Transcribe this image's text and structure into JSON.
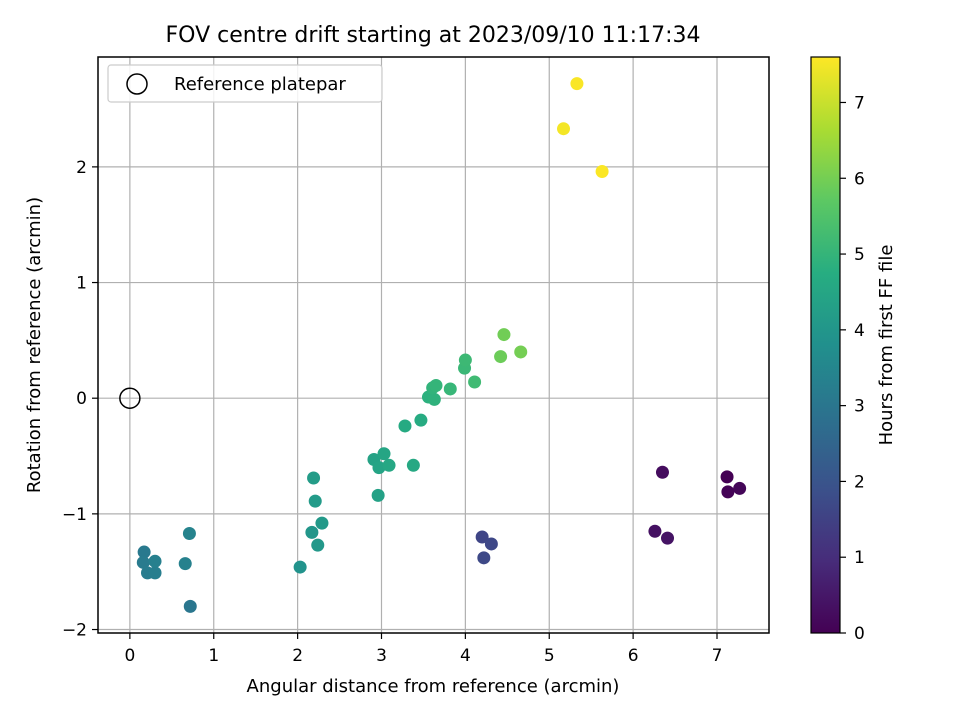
{
  "chart_data": {
    "type": "scatter",
    "title": "FOV centre drift starting at 2023/09/10 11:17:34",
    "xlabel": "Angular distance from reference (arcmin)",
    "ylabel": "Rotation from reference (arcmin)",
    "xlim": [
      -0.38,
      7.62
    ],
    "ylim": [
      -2.03,
      2.95
    ],
    "xticks": [
      0,
      1,
      2,
      3,
      4,
      5,
      6,
      7
    ],
    "yticks": [
      -2,
      -1,
      0,
      1,
      2
    ],
    "grid": true,
    "legend": {
      "location": "top-left",
      "label": "Reference platepar"
    },
    "reference_point": {
      "x": 0,
      "y": 0
    },
    "colorbar": {
      "label": "Hours from first FF file",
      "range": [
        0,
        7.6
      ],
      "ticks": [
        0,
        1,
        2,
        3,
        4,
        5,
        6,
        7
      ],
      "colormap": "viridis"
    },
    "points": [
      {
        "x": 7.12,
        "y": -0.68,
        "t": 0.0
      },
      {
        "x": 7.13,
        "y": -0.81,
        "t": 0.05
      },
      {
        "x": 7.27,
        "y": -0.78,
        "t": 0.1
      },
      {
        "x": 6.35,
        "y": -0.64,
        "t": 0.25
      },
      {
        "x": 6.26,
        "y": -1.15,
        "t": 0.35
      },
      {
        "x": 6.41,
        "y": -1.21,
        "t": 0.4
      },
      {
        "x": 4.2,
        "y": -1.2,
        "t": 1.6
      },
      {
        "x": 4.31,
        "y": -1.26,
        "t": 1.65
      },
      {
        "x": 4.22,
        "y": -1.38,
        "t": 1.7
      },
      {
        "x": 0.72,
        "y": -1.8,
        "t": 3.0
      },
      {
        "x": 0.17,
        "y": -1.33,
        "t": 3.1
      },
      {
        "x": 0.16,
        "y": -1.42,
        "t": 3.15
      },
      {
        "x": 0.21,
        "y": -1.51,
        "t": 3.2
      },
      {
        "x": 0.3,
        "y": -1.51,
        "t": 3.25
      },
      {
        "x": 0.3,
        "y": -1.41,
        "t": 3.3
      },
      {
        "x": 0.66,
        "y": -1.43,
        "t": 3.35
      },
      {
        "x": 0.71,
        "y": -1.17,
        "t": 3.4
      },
      {
        "x": 2.03,
        "y": -1.46,
        "t": 3.9
      },
      {
        "x": 2.17,
        "y": -1.16,
        "t": 4.0
      },
      {
        "x": 2.24,
        "y": -1.27,
        "t": 4.05
      },
      {
        "x": 2.29,
        "y": -1.08,
        "t": 4.1
      },
      {
        "x": 2.21,
        "y": -0.89,
        "t": 4.15
      },
      {
        "x": 2.19,
        "y": -0.69,
        "t": 4.2
      },
      {
        "x": 2.96,
        "y": -0.84,
        "t": 4.35
      },
      {
        "x": 2.91,
        "y": -0.53,
        "t": 4.4
      },
      {
        "x": 2.97,
        "y": -0.6,
        "t": 4.45
      },
      {
        "x": 3.03,
        "y": -0.48,
        "t": 4.5
      },
      {
        "x": 3.09,
        "y": -0.58,
        "t": 4.55
      },
      {
        "x": 3.38,
        "y": -0.58,
        "t": 4.6
      },
      {
        "x": 3.28,
        "y": -0.24,
        "t": 4.65
      },
      {
        "x": 3.47,
        "y": -0.19,
        "t": 4.7
      },
      {
        "x": 3.56,
        "y": 0.01,
        "t": 4.85
      },
      {
        "x": 3.63,
        "y": -0.01,
        "t": 4.9
      },
      {
        "x": 3.61,
        "y": 0.09,
        "t": 4.95
      },
      {
        "x": 3.65,
        "y": 0.11,
        "t": 5.0
      },
      {
        "x": 3.82,
        "y": 0.08,
        "t": 5.05
      },
      {
        "x": 3.99,
        "y": 0.26,
        "t": 5.1
      },
      {
        "x": 4.0,
        "y": 0.33,
        "t": 5.15
      },
      {
        "x": 4.11,
        "y": 0.14,
        "t": 5.2
      },
      {
        "x": 4.42,
        "y": 0.36,
        "t": 5.9
      },
      {
        "x": 4.46,
        "y": 0.55,
        "t": 5.95
      },
      {
        "x": 4.66,
        "y": 0.4,
        "t": 6.0
      },
      {
        "x": 5.33,
        "y": 2.72,
        "t": 7.55
      },
      {
        "x": 5.17,
        "y": 2.33,
        "t": 7.5
      },
      {
        "x": 5.63,
        "y": 1.96,
        "t": 7.58
      }
    ]
  }
}
